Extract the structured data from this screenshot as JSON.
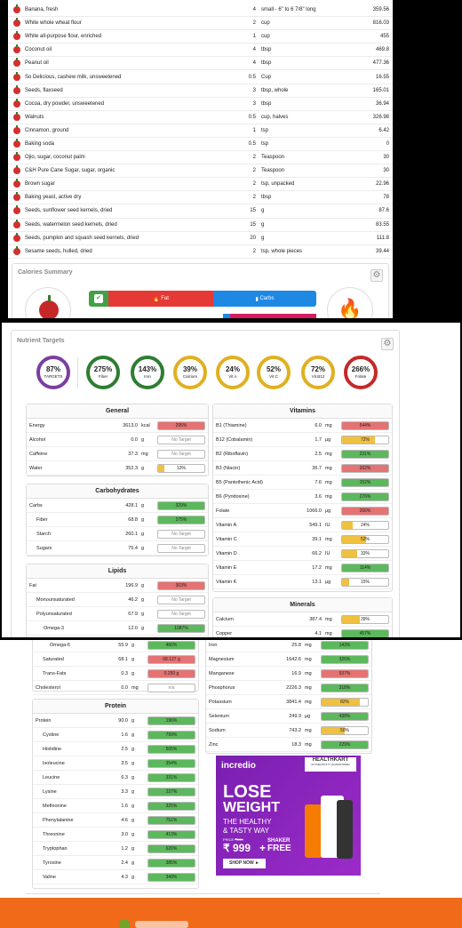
{
  "foods": [
    {
      "name": "Banana, fresh",
      "qty": "4",
      "unit": "small - 6\" to 6 7/8\" long",
      "cal": "359.56"
    },
    {
      "name": "White whole wheat flour",
      "qty": "2",
      "unit": "cup",
      "cal": "816.03"
    },
    {
      "name": "White all-purpose flour, enriched",
      "qty": "1",
      "unit": "cup",
      "cal": "455"
    },
    {
      "name": "Coconut oil",
      "qty": "4",
      "unit": "tbsp",
      "cal": "469.8"
    },
    {
      "name": "Peanut oil",
      "qty": "4",
      "unit": "tbsp",
      "cal": "477.36"
    },
    {
      "name": "So Delicious, cashew milk, unsweetened",
      "qty": "0.5",
      "unit": "Cup",
      "cal": "16.55"
    },
    {
      "name": "Seeds, flaxseed",
      "qty": "3",
      "unit": "tbsp, whole",
      "cal": "165.01"
    },
    {
      "name": "Cocoa, dry powder, unsweetened",
      "qty": "3",
      "unit": "tbsp",
      "cal": "36.94"
    },
    {
      "name": "Walnuts",
      "qty": "0.5",
      "unit": "cup, halves",
      "cal": "326.98"
    },
    {
      "name": "Cinnamon, ground",
      "qty": "1",
      "unit": "tsp",
      "cal": "6.42"
    },
    {
      "name": "Baking soda",
      "qty": "0.5",
      "unit": "tsp",
      "cal": "0"
    },
    {
      "name": "Ojio, sugar, coconut palm",
      "qty": "2",
      "unit": "Teaspoon",
      "cal": "30"
    },
    {
      "name": "C&H Pure Cane Sugar, sugar, organic",
      "qty": "2",
      "unit": "Teaspoon",
      "cal": "30"
    },
    {
      "name": "Brown sugar",
      "qty": "2",
      "unit": "tsp, unpacked",
      "cal": "22.96"
    },
    {
      "name": "Baking yeast, active dry",
      "qty": "2",
      "unit": "tbsp",
      "cal": "78"
    },
    {
      "name": "Seeds, sunflower seed kernels, dried",
      "qty": "15",
      "unit": "g",
      "cal": "87.6"
    },
    {
      "name": "Seeds, watermelon seed kernels, dried",
      "qty": "15",
      "unit": "g",
      "cal": "83.55"
    },
    {
      "name": "Seeds, pumpkin and squash seed kernels, dried",
      "qty": "20",
      "unit": "g",
      "cal": "111.8"
    },
    {
      "name": "Sesame seeds, hulled, dried",
      "qty": "2",
      "unit": "tsp, whole pieces",
      "cal": "39.44"
    }
  ],
  "calories_summary": {
    "title": "Calories Summary",
    "fat_label": "Fat",
    "carbs_label": "Carbs"
  },
  "nutrient_targets": {
    "title": "Nutrient Targets",
    "circles": [
      {
        "value": "87%",
        "label": "TARGETS",
        "color": "#7b3fa0"
      },
      {
        "value": "275%",
        "label": "Fiber",
        "color": "#2e7d32"
      },
      {
        "value": "143%",
        "label": "Iron",
        "color": "#2e7d32"
      },
      {
        "value": "39%",
        "label": "Calcium",
        "color": "#e0b020"
      },
      {
        "value": "24%",
        "label": "Vit.A",
        "color": "#e0b020"
      },
      {
        "value": "52%",
        "label": "Vit.C",
        "color": "#e0b020"
      },
      {
        "value": "72%",
        "label": "Vit.B12",
        "color": "#e0b020"
      },
      {
        "value": "266%",
        "label": "Folate",
        "color": "#c62828"
      }
    ]
  },
  "general": {
    "title": "General",
    "rows": [
      {
        "name": "Energy",
        "val": "3613.0",
        "unit": "kcal",
        "bar": "295%",
        "color": "red",
        "pct": 100
      },
      {
        "name": "Alcohol",
        "val": "0.0",
        "unit": "g",
        "bar": "No Target",
        "color": "none",
        "pct": 0
      },
      {
        "name": "Caffeine",
        "val": "37.3",
        "unit": "mg",
        "bar": "No Target",
        "color": "none",
        "pct": 0
      },
      {
        "name": "Water",
        "val": "352.3",
        "unit": "g",
        "bar": "13%",
        "color": "yellow",
        "pct": 13
      }
    ]
  },
  "carbohydrates": {
    "title": "Carbohydrates",
    "rows": [
      {
        "name": "Carbs",
        "val": "428.1",
        "unit": "g",
        "bar": "329%",
        "color": "green",
        "pct": 100,
        "indent": 0
      },
      {
        "name": "Fiber",
        "val": "68.8",
        "unit": "g",
        "bar": "275%",
        "color": "green",
        "pct": 100,
        "indent": 1
      },
      {
        "name": "Starch",
        "val": "260.1",
        "unit": "g",
        "bar": "No Target",
        "color": "none",
        "pct": 0,
        "indent": 1
      },
      {
        "name": "Sugars",
        "val": "75.4",
        "unit": "g",
        "bar": "No Target",
        "color": "none",
        "pct": 0,
        "indent": 1
      }
    ]
  },
  "lipids": {
    "title": "Lipids",
    "rows": [
      {
        "name": "Fat",
        "val": "196.9",
        "unit": "g",
        "bar": "303%",
        "color": "red",
        "pct": 100,
        "indent": 0
      },
      {
        "name": "Monounsaturated",
        "val": "46.2",
        "unit": "g",
        "bar": "No Target",
        "color": "none",
        "pct": 0,
        "indent": 1
      },
      {
        "name": "Polyunsaturated",
        "val": "67.9",
        "unit": "g",
        "bar": "No Target",
        "color": "none",
        "pct": 0,
        "indent": 1
      },
      {
        "name": "Omega-3",
        "val": "12.0",
        "unit": "g",
        "bar": "1087%",
        "color": "green",
        "pct": 100,
        "indent": 2
      }
    ]
  },
  "lipids_cont": [
    {
      "name": "Omega-6",
      "val": "55.9",
      "unit": "g",
      "bar": "466%",
      "color": "green",
      "pct": 100,
      "indent": 2
    },
    {
      "name": "Saturated",
      "val": "68.1",
      "unit": "g",
      "bar": "68.127 g",
      "color": "red",
      "pct": 100,
      "indent": 1
    },
    {
      "name": "Trans-Fats",
      "val": "0.3",
      "unit": "g",
      "bar": "0.250 g",
      "color": "red",
      "pct": 100,
      "indent": 1
    },
    {
      "name": "Cholesterol",
      "val": "0.0",
      "unit": "mg",
      "bar": "n/a",
      "color": "none",
      "pct": 0,
      "indent": 0
    }
  ],
  "vitamins": {
    "title": "Vitamins",
    "rows": [
      {
        "name": "B1 (Thiamine)",
        "val": "6.0",
        "unit": "mg",
        "bar": "544%",
        "color": "red",
        "pct": 100
      },
      {
        "name": "B12 (Cobalamin)",
        "val": "1.7",
        "unit": "µg",
        "bar": "72%",
        "color": "yellow",
        "pct": 72
      },
      {
        "name": "B2 (Riboflavin)",
        "val": "2.5",
        "unit": "mg",
        "bar": "231%",
        "color": "green",
        "pct": 100
      },
      {
        "name": "B3 (Niacin)",
        "val": "36.7",
        "unit": "mg",
        "bar": "262%",
        "color": "red",
        "pct": 100
      },
      {
        "name": "B5 (Pantothenic Acid)",
        "val": "7.6",
        "unit": "mg",
        "bar": "152%",
        "color": "green",
        "pct": 100
      },
      {
        "name": "B6 (Pyridoxine)",
        "val": "3.6",
        "unit": "mg",
        "bar": "276%",
        "color": "green",
        "pct": 100
      },
      {
        "name": "Folate",
        "val": "1066.0",
        "unit": "µg",
        "bar": "266%",
        "color": "red",
        "pct": 100
      },
      {
        "name": "Vitamin A",
        "val": "549.1",
        "unit": "IU",
        "bar": "24%",
        "color": "yellow",
        "pct": 24
      },
      {
        "name": "Vitamin C",
        "val": "39.1",
        "unit": "mg",
        "bar": "52%",
        "color": "yellow",
        "pct": 52
      },
      {
        "name": "Vitamin D",
        "val": "66.2",
        "unit": "IU",
        "bar": "33%",
        "color": "yellow",
        "pct": 33
      },
      {
        "name": "Vitamin E",
        "val": "17.2",
        "unit": "mg",
        "bar": "114%",
        "color": "green",
        "pct": 100
      },
      {
        "name": "Vitamin K",
        "val": "13.1",
        "unit": "µg",
        "bar": "15%",
        "color": "yellow",
        "pct": 15
      }
    ]
  },
  "minerals": {
    "title": "Minerals",
    "rows": [
      {
        "name": "Calcium",
        "val": "387.4",
        "unit": "mg",
        "bar": "39%",
        "color": "yellow",
        "pct": 39
      },
      {
        "name": "Copper",
        "val": "4.1",
        "unit": "mg",
        "bar": "457%",
        "color": "green",
        "pct": 100
      }
    ]
  },
  "minerals_cont": [
    {
      "name": "Iron",
      "val": "25.8",
      "unit": "mg",
      "bar": "143%",
      "color": "green",
      "pct": 100
    },
    {
      "name": "Magnesium",
      "val": "1642.6",
      "unit": "mg",
      "bar": "326%",
      "color": "green",
      "pct": 100
    },
    {
      "name": "Manganese",
      "val": "16.9",
      "unit": "mg",
      "bar": "937%",
      "color": "red",
      "pct": 100
    },
    {
      "name": "Phosphorus",
      "val": "2226.3",
      "unit": "mg",
      "bar": "318%",
      "color": "green",
      "pct": 100
    },
    {
      "name": "Potassium",
      "val": "3841.4",
      "unit": "mg",
      "bar": "82%",
      "color": "yellow",
      "pct": 82
    },
    {
      "name": "Selenium",
      "val": "249.9",
      "unit": "µg",
      "bar": "438%",
      "color": "green",
      "pct": 100
    },
    {
      "name": "Sodium",
      "val": "743.2",
      "unit": "mg",
      "bar": "50%",
      "color": "yellow",
      "pct": 50
    },
    {
      "name": "Zinc",
      "val": "18.3",
      "unit": "mg",
      "bar": "229%",
      "color": "green",
      "pct": 100
    }
  ],
  "protein": {
    "title": "Protein",
    "rows": [
      {
        "name": "Protein",
        "val": "90.0",
        "unit": "g",
        "bar": "196%",
        "color": "green",
        "pct": 100,
        "indent": 0
      },
      {
        "name": "Cystine",
        "val": "1.6",
        "unit": "g",
        "bar": "799%",
        "color": "green",
        "pct": 100,
        "indent": 1
      },
      {
        "name": "Histidine",
        "val": "2.5",
        "unit": "g",
        "bar": "505%",
        "color": "green",
        "pct": 100,
        "indent": 1
      },
      {
        "name": "Isoleucine",
        "val": "3.5",
        "unit": "g",
        "bar": "354%",
        "color": "green",
        "pct": 100,
        "indent": 1
      },
      {
        "name": "Leucine",
        "val": "6.3",
        "unit": "g",
        "bar": "331%",
        "color": "green",
        "pct": 100,
        "indent": 1
      },
      {
        "name": "Lysine",
        "val": "3.3",
        "unit": "g",
        "bar": "227%",
        "color": "green",
        "pct": 100,
        "indent": 1
      },
      {
        "name": "Methionine",
        "val": "1.6",
        "unit": "g",
        "bar": "325%",
        "color": "green",
        "pct": 100,
        "indent": 1
      },
      {
        "name": "Phenylalanine",
        "val": "4.6",
        "unit": "g",
        "bar": "751%",
        "color": "green",
        "pct": 100,
        "indent": 1
      },
      {
        "name": "Threonine",
        "val": "3.0",
        "unit": "g",
        "bar": "413%",
        "color": "green",
        "pct": 100,
        "indent": 1
      },
      {
        "name": "Tryptophan",
        "val": "1.2",
        "unit": "g",
        "bar": "620%",
        "color": "green",
        "pct": 100,
        "indent": 1
      },
      {
        "name": "Tyrosine",
        "val": "2.4",
        "unit": "g",
        "bar": "385%",
        "color": "green",
        "pct": 100,
        "indent": 1
      },
      {
        "name": "Valine",
        "val": "4.3",
        "unit": "g",
        "bar": "349%",
        "color": "green",
        "pct": 100,
        "indent": 1
      }
    ]
  },
  "ad": {
    "brand": "incredio",
    "partner": "HEALTHKART",
    "partner_sub": "AUTHENTICITY GUARANTEED",
    "h1": "LOSE",
    "h2": "WEIGHT",
    "h3": "THE HEALTHY",
    "h4": "& TASTY WAY",
    "price_label": "PRICE",
    "old_price": "₹999",
    "price": "₹ 999",
    "plus": "+",
    "shaker": "SHAKER",
    "free": "FREE",
    "cta": "SHOP NOW ►"
  }
}
